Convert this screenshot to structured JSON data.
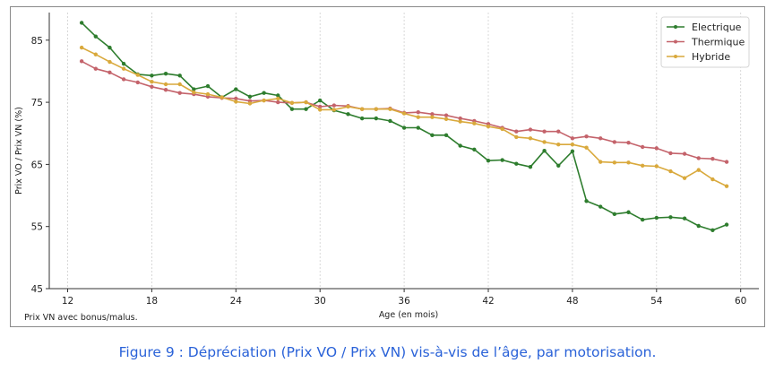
{
  "caption": "Figure 9 : Dépréciation (Prix VO / Prix VN) vis-à-vis de l’âge, par motorisation.",
  "chart_data": {
    "type": "line",
    "title": "",
    "xlabel": "Age (en mois)",
    "ylabel": "Prix VO / Prix VN (%)",
    "note": "Prix VN avec bonus/malus.",
    "xlim": [
      10,
      62
    ],
    "ylim": [
      45,
      90
    ],
    "xticks": [
      12,
      18,
      24,
      30,
      36,
      42,
      48,
      54,
      60
    ],
    "yticks": [
      45,
      55,
      65,
      75,
      85
    ],
    "grid": "x-dashed",
    "legend_position": "top-right",
    "x": [
      13,
      14,
      15,
      16,
      17,
      18,
      19,
      20,
      21,
      22,
      23,
      24,
      25,
      26,
      27,
      28,
      29,
      30,
      31,
      32,
      33,
      34,
      35,
      36,
      37,
      38,
      39,
      40,
      41,
      42,
      43,
      44,
      45,
      46,
      47,
      48,
      49,
      50,
      51,
      52,
      53,
      54,
      55,
      56,
      57,
      58,
      59
    ],
    "series": [
      {
        "name": "Electrique",
        "color": "#2e7d2e",
        "values": [
          87.8,
          85.6,
          83.8,
          81.2,
          79.5,
          79.3,
          79.6,
          79.3,
          77.1,
          77.6,
          75.8,
          77.1,
          75.9,
          76.5,
          76.1,
          73.9,
          73.9,
          75.3,
          73.7,
          73.1,
          72.4,
          72.4,
          72.0,
          70.9,
          70.9,
          69.7,
          69.7,
          68.0,
          67.4,
          65.6,
          65.7,
          65.1,
          64.6,
          67.2,
          64.8,
          67.1,
          59.1,
          58.2,
          57.0,
          57.3,
          56.1,
          56.4,
          56.5,
          56.3,
          55.1,
          54.4,
          55.3
        ]
      },
      {
        "name": "Thermique",
        "color": "#c4636b",
        "values": [
          81.6,
          80.4,
          79.8,
          78.7,
          78.2,
          77.5,
          77.0,
          76.5,
          76.3,
          75.9,
          75.7,
          75.6,
          75.2,
          75.3,
          75.0,
          74.9,
          75.0,
          74.3,
          74.5,
          74.4,
          73.9,
          73.9,
          74.0,
          73.3,
          73.4,
          73.1,
          72.9,
          72.4,
          72.0,
          71.5,
          70.9,
          70.3,
          70.6,
          70.3,
          70.3,
          69.2,
          69.5,
          69.2,
          68.6,
          68.5,
          67.8,
          67.6,
          66.8,
          66.7,
          66.0,
          65.9,
          65.4
        ]
      },
      {
        "name": "Hybride",
        "color": "#d9a93c",
        "values": [
          83.8,
          82.7,
          81.5,
          80.4,
          79.4,
          78.3,
          77.9,
          77.9,
          76.6,
          76.3,
          75.8,
          75.1,
          74.8,
          75.3,
          75.6,
          74.9,
          75.0,
          73.8,
          73.8,
          74.3,
          73.9,
          73.9,
          73.9,
          73.2,
          72.6,
          72.6,
          72.3,
          71.9,
          71.6,
          71.1,
          70.7,
          69.4,
          69.2,
          68.6,
          68.2,
          68.2,
          67.7,
          65.4,
          65.3,
          65.3,
          64.8,
          64.7,
          63.9,
          62.8,
          64.1,
          62.6,
          61.5
        ]
      }
    ]
  }
}
